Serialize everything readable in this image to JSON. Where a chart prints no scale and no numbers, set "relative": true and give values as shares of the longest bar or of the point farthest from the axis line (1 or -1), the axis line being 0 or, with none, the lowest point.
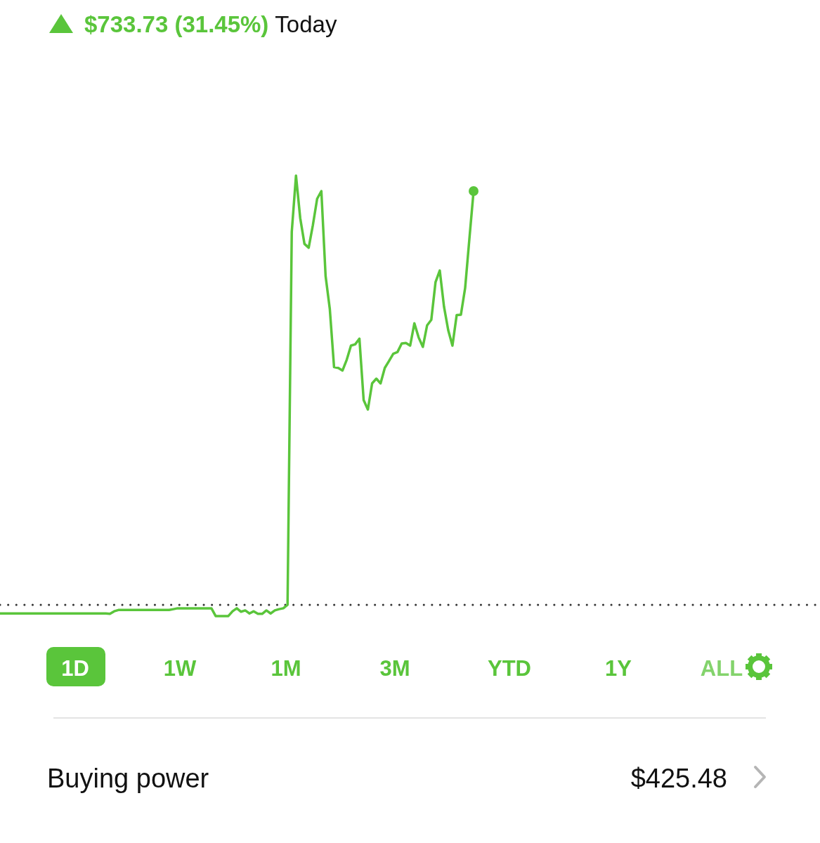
{
  "chart_data": {
    "type": "line",
    "title": "$733.73 (31.45%)",
    "subtitle": "Today",
    "relative": true,
    "line_style": "solid",
    "categories": [
      null,
      null,
      null,
      null,
      null,
      null,
      null,
      null,
      null,
      null,
      null,
      null,
      null,
      null,
      null,
      null,
      null,
      null,
      null,
      null,
      null,
      null,
      null,
      null,
      null,
      null,
      null,
      null,
      null,
      null,
      null,
      null,
      null,
      null,
      null,
      null,
      null,
      null,
      null,
      null,
      null,
      null,
      null,
      null,
      null,
      null,
      null,
      null,
      null,
      null,
      null,
      null,
      null,
      null,
      null,
      null,
      null,
      null,
      null,
      null,
      null,
      null,
      null,
      null,
      null,
      null,
      null,
      null,
      null,
      null,
      null,
      null,
      null,
      null,
      null,
      null,
      null,
      null,
      null,
      null,
      null,
      null,
      null,
      null,
      null,
      null,
      null,
      null,
      null,
      null,
      null,
      null,
      null,
      null,
      null,
      null,
      null,
      null,
      null,
      null,
      null,
      null,
      null,
      null,
      null,
      null,
      null,
      null,
      null,
      null,
      null,
      null,
      null
    ],
    "series": [
      {
        "color": "#5ac53b",
        "values": [
          -0.02,
          -0.02,
          -0.02,
          -0.02,
          -0.02,
          -0.02,
          -0.02,
          -0.02,
          -0.02,
          -0.02,
          -0.02,
          -0.02,
          -0.02,
          -0.02,
          -0.02,
          -0.02,
          -0.02,
          -0.02,
          -0.02,
          -0.02,
          -0.02,
          -0.02,
          -0.02,
          -0.02,
          -0.02,
          -0.02,
          -0.021,
          -0.015,
          -0.012,
          -0.012,
          -0.012,
          -0.012,
          -0.012,
          -0.012,
          -0.012,
          -0.012,
          -0.012,
          -0.012,
          -0.012,
          -0.012,
          -0.012,
          -0.01,
          -0.008,
          -0.008,
          -0.008,
          -0.008,
          -0.008,
          -0.008,
          -0.008,
          -0.008,
          -0.008,
          -0.026,
          -0.026,
          -0.026,
          -0.026,
          -0.015,
          -0.008,
          -0.016,
          -0.013,
          -0.02,
          -0.015,
          -0.021,
          -0.021,
          -0.013,
          -0.02,
          -0.013,
          -0.01,
          -0.008,
          0,
          0.869,
          1,
          0.901,
          0.841,
          0.832,
          0.885,
          0.946,
          0.964,
          0.766,
          0.689,
          0.554,
          0.552,
          0.546,
          0.571,
          0.604,
          0.607,
          0.62,
          0.477,
          0.455,
          0.516,
          0.527,
          0.516,
          0.552,
          0.568,
          0.585,
          0.589,
          0.609,
          0.61,
          0.604,
          0.656,
          0.623,
          0.601,
          0.651,
          0.664,
          0.752,
          0.779,
          0.695,
          0.64,
          0.604,
          0.675,
          0.676,
          0.738,
          0.852,
          0.964
        ]
      }
    ],
    "ref_lines": [
      {
        "axis": "y",
        "value": 0,
        "color": "#333333",
        "line_style": "dotted"
      }
    ],
    "annotations": [
      "1D",
      "1W",
      "1M",
      "3M",
      "YTD",
      "1Y",
      "ALL",
      "Buying power",
      "$425.48"
    ]
  }
}
